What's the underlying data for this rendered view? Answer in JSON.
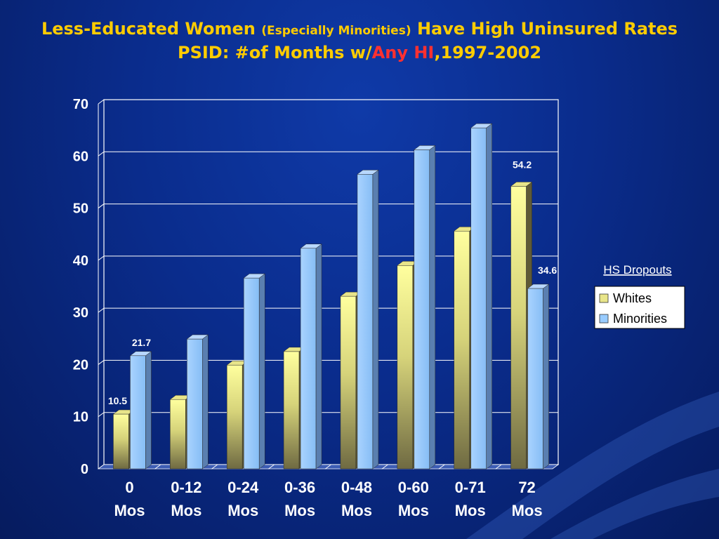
{
  "slide": {
    "title_part1": "Less-Educated Women ",
    "title_paren": "(Especially Minorities)",
    "title_part2": " Have High Uninsured Rates",
    "subtitle_part1": "PSID: #of Months w/",
    "subtitle_highlight": "Any HI",
    "subtitle_part2": ",1997-2002"
  },
  "colors": {
    "title": "#ffcc00",
    "highlight": "#ff3030",
    "whites": "#ffff99",
    "minorities": "#99ccff",
    "background": "#0a2c8c"
  },
  "chart_data": {
    "type": "bar",
    "categories": [
      [
        "0",
        "Mos"
      ],
      [
        "0-12",
        "Mos"
      ],
      [
        "0-24",
        "Mos"
      ],
      [
        "0-36",
        "Mos"
      ],
      [
        "0-48",
        "Mos"
      ],
      [
        "0-60",
        "Mos"
      ],
      [
        "0-71",
        "Mos"
      ],
      [
        "72",
        "Mos"
      ]
    ],
    "series": [
      {
        "name": "Whites",
        "values": [
          10.5,
          13.3,
          19.9,
          22.5,
          33.1,
          39.0,
          45.6,
          54.2
        ]
      },
      {
        "name": "Minorities",
        "values": [
          21.7,
          24.9,
          36.6,
          42.3,
          56.5,
          61.2,
          65.4,
          34.6
        ]
      }
    ],
    "data_labels": [
      {
        "series": 0,
        "index": 0,
        "text": "10.5"
      },
      {
        "series": 1,
        "index": 0,
        "text": "21.7"
      },
      {
        "series": 0,
        "index": 7,
        "text": "54.2"
      },
      {
        "series": 1,
        "index": 7,
        "text": "34.6"
      }
    ],
    "ylim": [
      0,
      70
    ],
    "yticks": [
      0,
      10,
      20,
      30,
      40,
      50,
      60,
      70
    ],
    "grid": true,
    "legend": {
      "title": "HS Dropouts",
      "placement": "right"
    }
  }
}
